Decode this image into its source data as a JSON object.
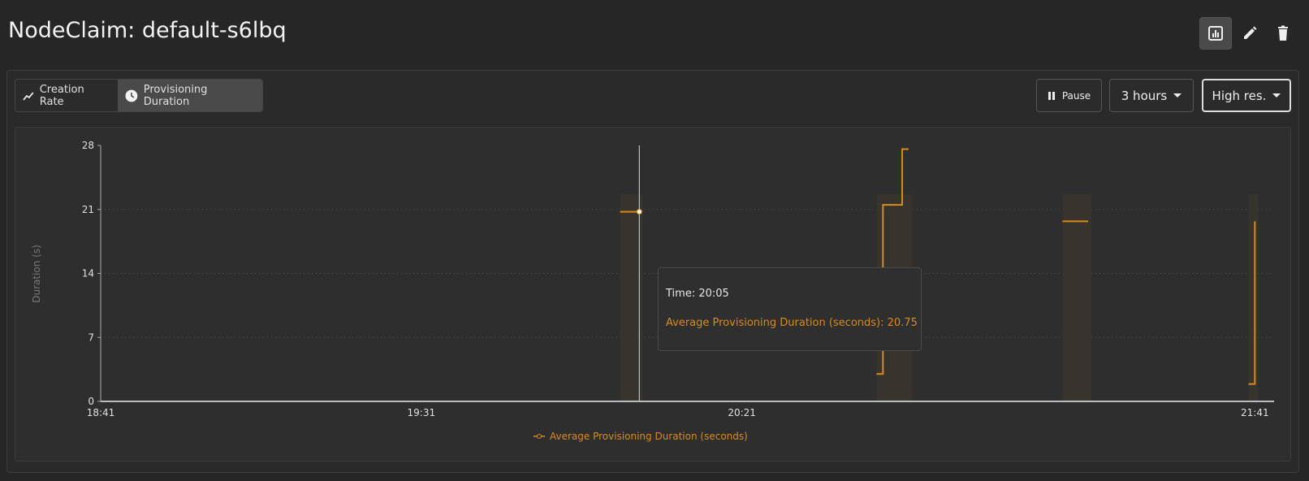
{
  "header": {
    "title": "NodeClaim: default-s6lbq"
  },
  "tabs": [
    {
      "label": "Creation Rate",
      "icon": "trend-line-icon"
    },
    {
      "label": "Provisioning Duration",
      "icon": "clock-icon",
      "active": true
    }
  ],
  "controls": {
    "pause_label": "Pause",
    "range_label": "3 hours",
    "resolution_label": "High res."
  },
  "tooltip": {
    "time": "Time: 20:05",
    "value": "Average Provisioning Duration (seconds): 20.75"
  },
  "colors": {
    "series": "#d98b1a",
    "background": "#262626"
  },
  "chart_data": {
    "type": "line",
    "step": true,
    "ylabel": "Duration (s)",
    "xlabel": "",
    "ylim": [
      0,
      28
    ],
    "yticks": [
      0,
      7,
      14,
      21,
      28
    ],
    "xlim": [
      "18:41",
      "21:44"
    ],
    "xticks": [
      "18:41",
      "19:31",
      "20:21",
      "21:41"
    ],
    "grid": "horizontal-dotted",
    "legend_position": "bottom",
    "series": [
      {
        "name": "Average Provisioning Duration (seconds)",
        "segments": [
          [
            [
              "20:02",
              20.75
            ],
            [
              "20:05",
              20.75
            ]
          ],
          [
            [
              "20:42",
              3
            ],
            [
              "20:43",
              21.5
            ],
            [
              "20:46",
              27.6
            ],
            [
              "20:47",
              27.6
            ]
          ],
          [
            [
              "21:11",
              19.7
            ],
            [
              "21:15",
              19.7
            ]
          ],
          [
            [
              "21:40",
              1.9
            ],
            [
              "21:41",
              19.7
            ],
            [
              "21:41",
              19.7
            ]
          ]
        ]
      }
    ],
    "hover": {
      "x": "20:05",
      "y": 20.75
    }
  }
}
